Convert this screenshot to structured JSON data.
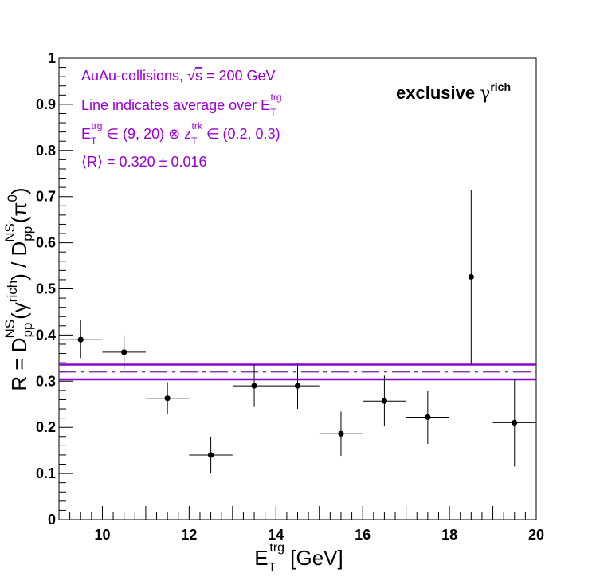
{
  "chart_data": {
    "type": "scatter",
    "xlim": [
      9,
      20
    ],
    "ylim": [
      0,
      1
    ],
    "x_ticks": [
      10,
      12,
      14,
      16,
      18,
      20
    ],
    "y_ticks": [
      0,
      0.1,
      0.2,
      0.3,
      0.4,
      0.5,
      0.6,
      0.7,
      0.8,
      0.9,
      1
    ],
    "x_tick_labels": [
      "10",
      "12",
      "14",
      "16",
      "18",
      "20"
    ],
    "y_tick_labels": [
      "0",
      "0.1",
      "0.2",
      "0.3",
      "0.4",
      "0.5",
      "0.6",
      "0.7",
      "0.8",
      "0.9",
      "1"
    ],
    "xlabel": {
      "main": "E",
      "sub": "T",
      "sup": "trg",
      "rest": " [GeV]"
    },
    "ylabel": {
      "p1": "R = D",
      "p1_sub": "pp",
      "p1_sup": "NS",
      "p2": "(γ",
      "p2_sup": "rich",
      "p3": ") / D",
      "p3_sub": "pp",
      "p3_sup": "NS",
      "p4": "(π",
      "p4_sup": "0",
      "p5": ")"
    },
    "points": [
      {
        "x": 9.5,
        "y": 0.39,
        "xerr": 0.5,
        "yerr_low": 0.04,
        "yerr_high": 0.043
      },
      {
        "x": 10.5,
        "y": 0.363,
        "xerr": 0.5,
        "yerr_low": 0.038,
        "yerr_high": 0.037
      },
      {
        "x": 11.5,
        "y": 0.263,
        "xerr": 0.5,
        "yerr_low": 0.035,
        "yerr_high": 0.035
      },
      {
        "x": 12.5,
        "y": 0.14,
        "xerr": 0.5,
        "yerr_low": 0.04,
        "yerr_high": 0.04
      },
      {
        "x": 13.5,
        "y": 0.29,
        "xerr": 0.5,
        "yerr_low": 0.046,
        "yerr_high": 0.046
      },
      {
        "x": 14.5,
        "y": 0.29,
        "xerr": 0.5,
        "yerr_low": 0.05,
        "yerr_high": 0.05
      },
      {
        "x": 15.5,
        "y": 0.186,
        "xerr": 0.5,
        "yerr_low": 0.048,
        "yerr_high": 0.048
      },
      {
        "x": 16.5,
        "y": 0.257,
        "xerr": 0.5,
        "yerr_low": 0.055,
        "yerr_high": 0.055
      },
      {
        "x": 17.5,
        "y": 0.222,
        "xerr": 0.5,
        "yerr_low": 0.058,
        "yerr_high": 0.058
      },
      {
        "x": 18.5,
        "y": 0.526,
        "xerr": 0.5,
        "yerr_low": 0.19,
        "yerr_high": 0.188
      },
      {
        "x": 19.5,
        "y": 0.21,
        "xerr": 0.5,
        "yerr_low": 0.095,
        "yerr_high": 0.095
      }
    ],
    "average": {
      "value": 0.32,
      "error": 0.016
    },
    "colors": {
      "text_annotation": "#9900cc",
      "band": "#8800cc",
      "average_line": "#7a1f9a",
      "markers": "#000000"
    },
    "annotations": {
      "line1_pre": "AuAu-collisions, ",
      "line1_sqrt": "√",
      "line1_s": "s",
      "line1_post": " = 200 GeV",
      "line2_main": "Line indicates average over E",
      "line2_sub": "T",
      "line2_sup": "trg",
      "line3_e": "E",
      "line3_e_sub": "T",
      "line3_e_sup": "trg",
      "line3_mid": " ∈ (9, 20) ⊗ z",
      "line3_z_sub": "T",
      "line3_z_sup": "trk",
      "line3_end": " ∈ (0.2, 0.3)",
      "line4": "⟨R⟩ = 0.320 ± 0.016",
      "label_main": "exclusive ",
      "label_gamma": "γ",
      "label_sup": "rich"
    }
  }
}
